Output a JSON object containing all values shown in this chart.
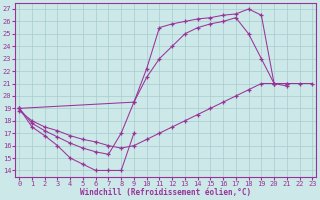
{
  "bg_color": "#cce8e8",
  "line_color": "#993399",
  "grid_color": "#a8cccc",
  "xlabel": "Windchill (Refroidissement éolien,°C)",
  "xlim": [
    -0.3,
    23.3
  ],
  "ylim": [
    13.5,
    27.5
  ],
  "xticks": [
    0,
    1,
    2,
    3,
    4,
    5,
    6,
    7,
    8,
    9,
    10,
    11,
    12,
    13,
    14,
    15,
    16,
    17,
    18,
    19,
    20,
    21,
    22,
    23
  ],
  "yticks": [
    14,
    15,
    16,
    17,
    18,
    19,
    20,
    21,
    22,
    23,
    24,
    25,
    26,
    27
  ],
  "curveA_x": [
    0,
    1,
    2,
    3,
    4,
    5,
    6,
    7,
    8,
    9,
    10,
    11,
    12,
    13,
    14,
    15,
    16,
    17,
    18,
    19,
    20,
    21
  ],
  "curveA_y": [
    19.0,
    17.8,
    17.2,
    16.7,
    16.2,
    15.8,
    15.5,
    15.3,
    17.0,
    19.5,
    22.2,
    25.5,
    25.8,
    26.0,
    26.2,
    26.3,
    26.5,
    26.6,
    27.0,
    26.5,
    21.0,
    20.8
  ],
  "curveB_x": [
    0,
    1,
    2,
    3,
    4,
    5,
    6,
    7,
    8,
    9
  ],
  "curveB_y": [
    19.0,
    17.5,
    16.8,
    16.0,
    15.0,
    14.5,
    14.0,
    14.0,
    14.0,
    17.0
  ],
  "curveC_x": [
    0,
    1,
    2,
    3,
    4,
    5,
    6,
    7,
    8,
    9,
    10,
    11,
    12,
    13,
    14,
    15,
    16,
    17,
    18,
    19,
    20,
    21,
    22,
    23
  ],
  "curveC_y": [
    18.8,
    18.0,
    17.5,
    17.2,
    16.8,
    16.5,
    16.3,
    16.0,
    15.8,
    16.0,
    16.5,
    17.0,
    17.5,
    18.0,
    18.5,
    19.0,
    19.5,
    20.0,
    20.5,
    21.0,
    21.0,
    21.0,
    21.0,
    21.0
  ],
  "curveD_x": [
    0,
    9,
    10,
    11,
    12,
    13,
    14,
    15,
    16,
    17,
    18,
    19,
    20,
    21
  ],
  "curveD_y": [
    19.0,
    19.5,
    21.5,
    23.0,
    24.0,
    25.0,
    25.5,
    25.8,
    26.0,
    26.3,
    25.0,
    23.0,
    21.0,
    21.0
  ]
}
